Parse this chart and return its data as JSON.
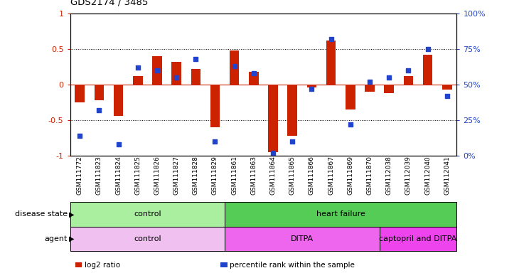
{
  "title": "GDS2174 / 3485",
  "samples": [
    "GSM111772",
    "GSM111823",
    "GSM111824",
    "GSM111825",
    "GSM111826",
    "GSM111827",
    "GSM111828",
    "GSM111829",
    "GSM111861",
    "GSM111863",
    "GSM111864",
    "GSM111865",
    "GSM111866",
    "GSM111867",
    "GSM111869",
    "GSM111870",
    "GSM112038",
    "GSM112039",
    "GSM112040",
    "GSM112041"
  ],
  "log2_ratio": [
    -0.25,
    -0.22,
    -0.44,
    0.12,
    0.4,
    0.32,
    0.22,
    -0.6,
    0.48,
    0.18,
    -0.95,
    -0.72,
    -0.04,
    0.62,
    -0.35,
    -0.1,
    -0.12,
    0.12,
    0.42,
    -0.07
  ],
  "percentile": [
    14,
    32,
    8,
    62,
    60,
    55,
    68,
    10,
    63,
    58,
    2,
    10,
    47,
    82,
    22,
    52,
    55,
    60,
    75,
    42
  ],
  "bar_color": "#cc2200",
  "dot_color": "#2244cc",
  "ylim_left": [
    -1,
    1
  ],
  "ylim_right": [
    0,
    100
  ],
  "yticks_left": [
    -1,
    -0.5,
    0,
    0.5,
    1
  ],
  "ytick_labels_left": [
    "-1",
    "-0.5",
    "0",
    "0.5",
    "1"
  ],
  "yticks_right": [
    0,
    25,
    50,
    75,
    100
  ],
  "ytick_labels_right": [
    "0%",
    "25%",
    "50%",
    "75%",
    "100%"
  ],
  "dotted_lines": [
    -0.5,
    0.5
  ],
  "disease_state_groups": [
    {
      "label": "control",
      "start": 0,
      "end": 8,
      "color": "#aaeea0"
    },
    {
      "label": "heart failure",
      "start": 8,
      "end": 20,
      "color": "#55cc55"
    }
  ],
  "agent_groups": [
    {
      "label": "control",
      "start": 0,
      "end": 8,
      "color": "#f0c0f0"
    },
    {
      "label": "DITPA",
      "start": 8,
      "end": 16,
      "color": "#ee66ee"
    },
    {
      "label": "captopril and DITPA",
      "start": 16,
      "end": 20,
      "color": "#ee44ee"
    }
  ],
  "legend_items": [
    {
      "label": "log2 ratio",
      "color": "#cc2200"
    },
    {
      "label": "percentile rank within the sample",
      "color": "#2244cc"
    }
  ],
  "row_label_disease": "disease state",
  "row_label_agent": "agent",
  "background_color": "#ffffff"
}
